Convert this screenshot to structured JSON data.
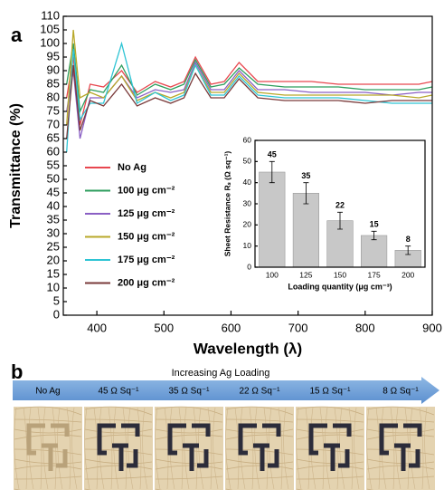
{
  "panel_labels": [
    "a",
    "b"
  ],
  "chart_data": [
    {
      "type": "line",
      "xlabel": "Wavelength (λ)",
      "ylabel": "Transmittance (%)",
      "x": [
        355,
        365,
        375,
        390,
        410,
        437,
        460,
        487,
        510,
        530,
        547,
        570,
        590,
        612,
        640,
        680,
        720,
        760,
        800,
        840,
        880,
        900
      ],
      "series": [
        {
          "name": "No Ag",
          "color": "#e8474f",
          "values": [
            80,
            95,
            70,
            85,
            84,
            90,
            82,
            86,
            84,
            86,
            95,
            85,
            86,
            93,
            86,
            86,
            86,
            85,
            85,
            85,
            85,
            86
          ]
        },
        {
          "name": "100 μg cm⁻²",
          "color": "#2e9e5e",
          "values": [
            85,
            100,
            75,
            83,
            82,
            92,
            81,
            85,
            83,
            85,
            94,
            84,
            85,
            91,
            85,
            84,
            84,
            84,
            83,
            83,
            83,
            84
          ]
        },
        {
          "name": "125 μg cm⁻²",
          "color": "#8a5fc4",
          "values": [
            75,
            90,
            65,
            80,
            80,
            88,
            80,
            83,
            82,
            83,
            93,
            83,
            83,
            90,
            83,
            83,
            82,
            82,
            82,
            81,
            82,
            82
          ]
        },
        {
          "name": "150 μg cm⁻²",
          "color": "#b8a82a",
          "values": [
            70,
            105,
            80,
            82,
            80,
            88,
            79,
            82,
            80,
            82,
            92,
            82,
            82,
            89,
            82,
            81,
            81,
            81,
            81,
            81,
            80,
            81
          ]
        },
        {
          "name": "175 μg cm⁻²",
          "color": "#2ec4d4",
          "values": [
            60,
            98,
            72,
            78,
            78,
            100,
            78,
            82,
            79,
            81,
            92,
            81,
            81,
            88,
            81,
            80,
            80,
            80,
            79,
            78,
            78,
            78
          ]
        },
        {
          "name": "200 μg cm⁻²",
          "color": "#7a3a3a",
          "values": [
            65,
            92,
            68,
            79,
            77,
            85,
            77,
            80,
            78,
            80,
            89,
            80,
            80,
            87,
            80,
            79,
            79,
            79,
            78,
            79,
            79,
            79
          ]
        }
      ],
      "xlim": [
        350,
        900
      ],
      "xticks": [
        400,
        500,
        600,
        700,
        800,
        900
      ],
      "ylim": [
        0,
        110
      ],
      "yticks": [
        0,
        5,
        10,
        15,
        20,
        25,
        30,
        35,
        40,
        45,
        50,
        55,
        60,
        65,
        70,
        75,
        80,
        85,
        90,
        95,
        100,
        105,
        110
      ]
    },
    {
      "type": "bar",
      "xlabel": "Loading quantity (μg cm⁻³)",
      "ylabel": "Sheet Resistance Rₛ (Ω sq⁻¹)",
      "categories": [
        "100",
        "125",
        "150",
        "175",
        "200"
      ],
      "values": [
        45,
        35,
        22,
        15,
        8
      ],
      "errors": [
        5,
        5,
        4,
        2,
        2
      ],
      "color": "#c8c8c8",
      "ylim": [
        0,
        60
      ],
      "yticks": [
        0,
        10,
        20,
        30,
        40,
        50,
        60
      ]
    }
  ],
  "strip": {
    "title": "Increasing Ag Loading",
    "labels": [
      "No Ag",
      "45 Ω Sq⁻¹",
      "35 Ω Sq⁻¹",
      "22 Ω Sq⁻¹",
      "15 Ω Sq⁻¹",
      "8 Ω Sq⁻¹"
    ]
  }
}
